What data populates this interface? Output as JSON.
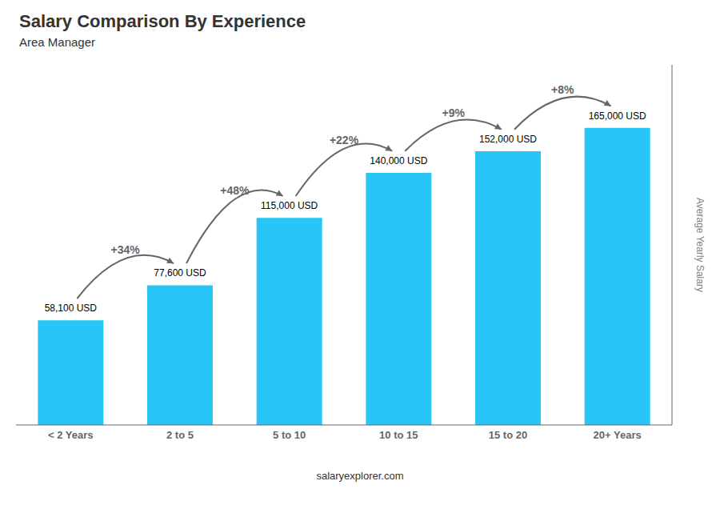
{
  "chart_data": {
    "type": "bar",
    "title": "Salary Comparison By Experience",
    "subtitle": "Area Manager",
    "categories": [
      "< 2 Years",
      "2 to 5",
      "5 to 10",
      "10 to 15",
      "15 to 20",
      "20+ Years"
    ],
    "values": [
      58100,
      77600,
      115000,
      140000,
      152000,
      165000
    ],
    "value_labels": [
      "58,100 USD",
      "77,600 USD",
      "115,000 USD",
      "140,000 USD",
      "152,000 USD",
      "165,000 USD"
    ],
    "data_labels": true,
    "annotations": [
      "+34%",
      "+48%",
      "+22%",
      "+9%",
      "+8%"
    ],
    "color": "#29c5f6",
    "ylim": [
      0,
      200000
    ],
    "ylabel": "Average Yearly Salary",
    "watermark": "salaryexplorer.com",
    "tick_labels": "x",
    "grid": false
  }
}
